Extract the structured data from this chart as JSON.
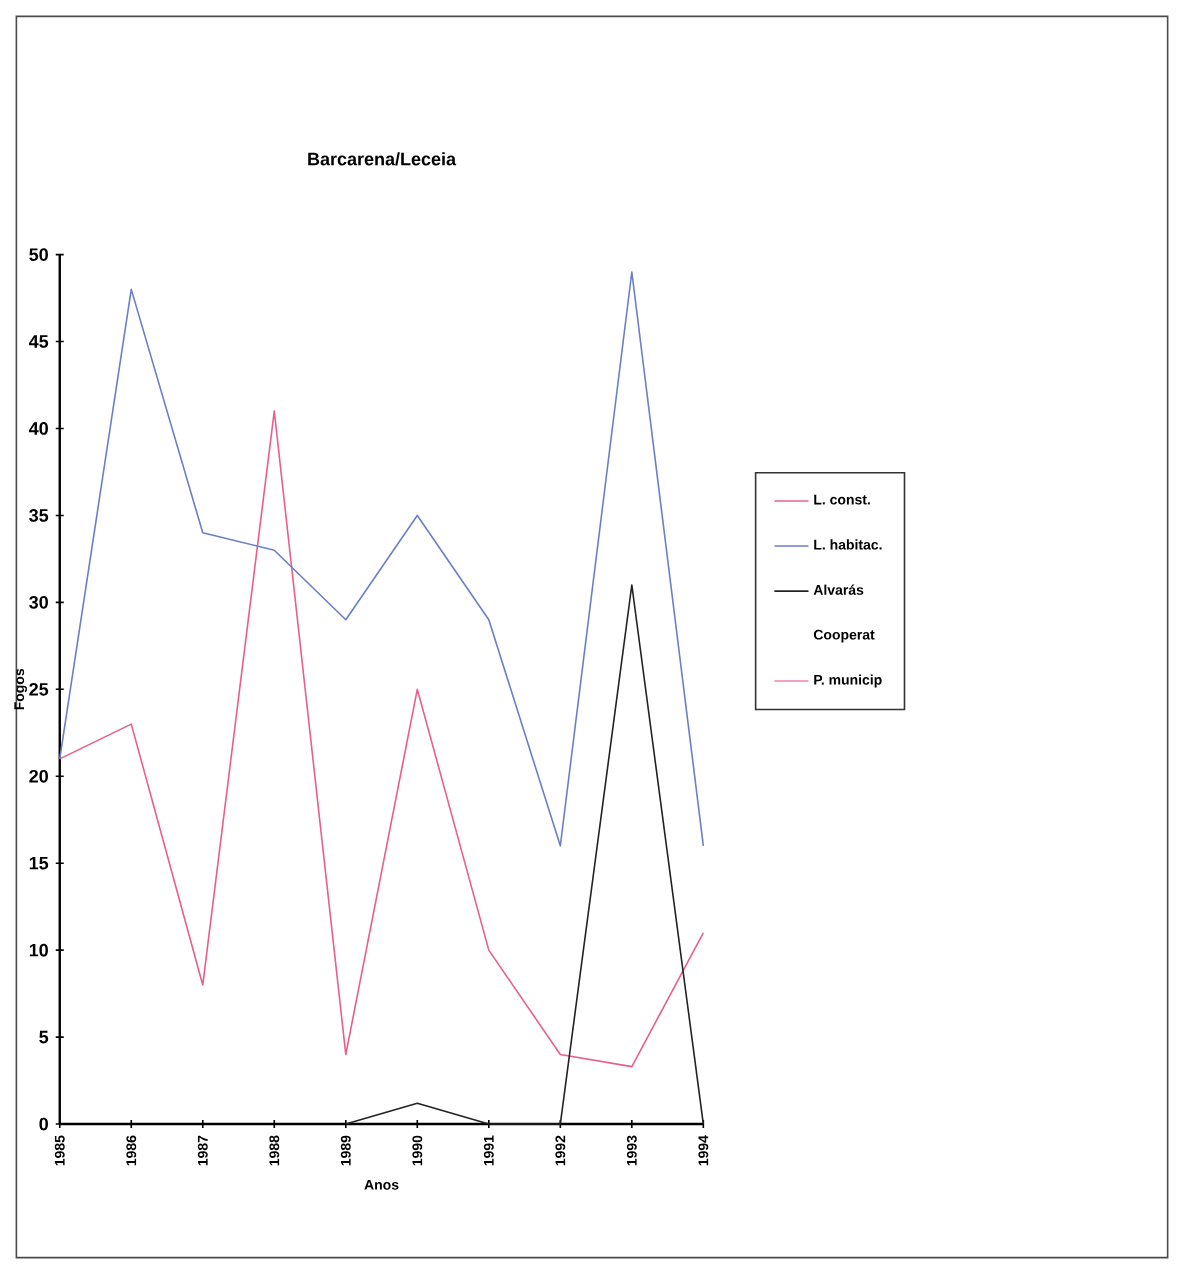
{
  "chart_data": {
    "type": "line",
    "title": "Barcarena/Leceia",
    "xlabel": "Anos",
    "ylabel": "Fogos",
    "categories": [
      "1985",
      "1986",
      "1987",
      "1988",
      "1989",
      "1990",
      "1991",
      "1992",
      "1993",
      "1994"
    ],
    "series": [
      {
        "name": "L. const.",
        "color": "#e8608a",
        "values": [
          21,
          23,
          8,
          41,
          4,
          25,
          10,
          4,
          3.3,
          11
        ]
      },
      {
        "name": "L. habitac.",
        "color": "#6a7fc8",
        "values": [
          21,
          48,
          34,
          33,
          29,
          35,
          29,
          16,
          49,
          16
        ]
      },
      {
        "name": "Alvarás",
        "color": "#222222",
        "values": [
          null,
          null,
          null,
          null,
          0,
          1.2,
          0,
          0,
          31,
          0
        ]
      },
      {
        "name": "Cooperat",
        "values": [
          null,
          null,
          null,
          null,
          null,
          null,
          null,
          null,
          null,
          null
        ]
      },
      {
        "name": "P. municip",
        "color": "#f080b0",
        "values": [
          null,
          null,
          null,
          null,
          null,
          null,
          null,
          null,
          null,
          null
        ]
      }
    ],
    "ylim": [
      0,
      50
    ],
    "yticks": [
      0,
      5,
      10,
      15,
      20,
      25,
      30,
      35,
      40,
      45,
      50
    ],
    "grid": false,
    "legend": "right",
    "marker": "none",
    "line_style": "solid"
  }
}
